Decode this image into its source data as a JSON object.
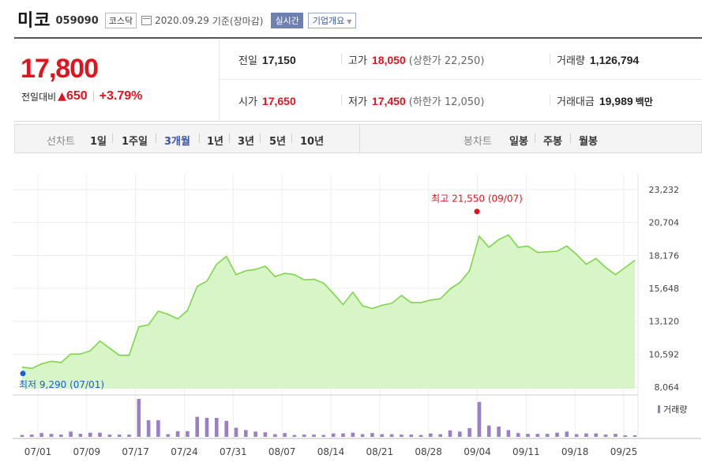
{
  "header": {
    "name": "미코",
    "code": "059090",
    "market": "코스닥",
    "date": "2020.09.29",
    "basis": "기준(장마감)",
    "live": "실시간",
    "corp": "기업개요"
  },
  "quote": {
    "price": "17,800",
    "change_label": "전일대비",
    "change": "650",
    "change_pct": "+3.79%",
    "prev_label": "전일",
    "prev": "17,150",
    "open_label": "시가",
    "open": "17,650",
    "high_label": "고가",
    "high": "18,050",
    "upper_limit": "(상한가 22,250)",
    "low_label": "저가",
    "low": "17,450",
    "lower_limit": "(하한가 12,050)",
    "volume_label": "거래량",
    "volume": "1,126,794",
    "amount_label": "거래대금",
    "amount": "19,989",
    "amount_unit": "백만"
  },
  "tabs": {
    "line_label": "선차트",
    "line_periods": [
      "1일",
      "1주일",
      "3개월",
      "1년",
      "3년",
      "5년",
      "10년"
    ],
    "selected": "3개월",
    "candle_label": "봉차트",
    "candle_periods": [
      "일봉",
      "주봉",
      "월봉"
    ]
  },
  "colors": {
    "up": "#e0141f",
    "line": "#7fd64a",
    "fill": "#d7f5c6",
    "volume": "#9a7fc8",
    "low": "#1a5fd0"
  },
  "chart_data": {
    "type": "area",
    "y_ticks": [
      "23,232",
      "20,704",
      "18,176",
      "15,648",
      "13,120",
      "10,592",
      "8,064"
    ],
    "ylim": [
      8064,
      23232
    ],
    "x_tick_labels": [
      "07/01",
      "07/09",
      "07/17",
      "07/24",
      "07/31",
      "08/07",
      "08/14",
      "08/21",
      "08/28",
      "09/04",
      "09/11",
      "09/18",
      "09/25"
    ],
    "high_annotation": "최고 21,550 (09/07)",
    "low_annotation": "최저 9,290 (07/01)",
    "high_value": 21550,
    "low_value": 9290,
    "grid": true,
    "price_series": [
      9600,
      9500,
      9850,
      10050,
      9950,
      10600,
      10600,
      10850,
      11600,
      11050,
      10500,
      10500,
      12700,
      12850,
      13900,
      13650,
      13300,
      13950,
      15800,
      16200,
      17500,
      18100,
      16700,
      17000,
      17100,
      17350,
      16550,
      16800,
      16700,
      16300,
      16350,
      16050,
      15250,
      14400,
      15350,
      14300,
      14100,
      14350,
      14500,
      15100,
      14550,
      14550,
      14750,
      14850,
      15600,
      16100,
      17000,
      19650,
      18800,
      19400,
      19750,
      18800,
      18900,
      18400,
      18450,
      18500,
      18900,
      18250,
      17500,
      17950,
      17250,
      16700,
      17250,
      17800
    ],
    "volume_legend": "거래량",
    "volume_series": [
      0.05,
      0.06,
      0.1,
      0.08,
      0.06,
      0.14,
      0.08,
      0.11,
      0.11,
      0.06,
      0.06,
      0.06,
      1.0,
      0.44,
      0.44,
      0.07,
      0.15,
      0.15,
      0.53,
      0.5,
      0.5,
      0.42,
      0.24,
      0.18,
      0.14,
      0.12,
      0.07,
      0.1,
      0.05,
      0.06,
      0.06,
      0.05,
      0.09,
      0.09,
      0.11,
      0.07,
      0.1,
      0.07,
      0.07,
      0.06,
      0.06,
      0.05,
      0.09,
      0.07,
      0.17,
      0.14,
      0.23,
      0.92,
      0.3,
      0.27,
      0.18,
      0.1,
      0.08,
      0.08,
      0.08,
      0.11,
      0.14,
      0.07,
      0.09,
      0.09,
      0.06,
      0.08,
      0.04,
      0.04
    ]
  }
}
